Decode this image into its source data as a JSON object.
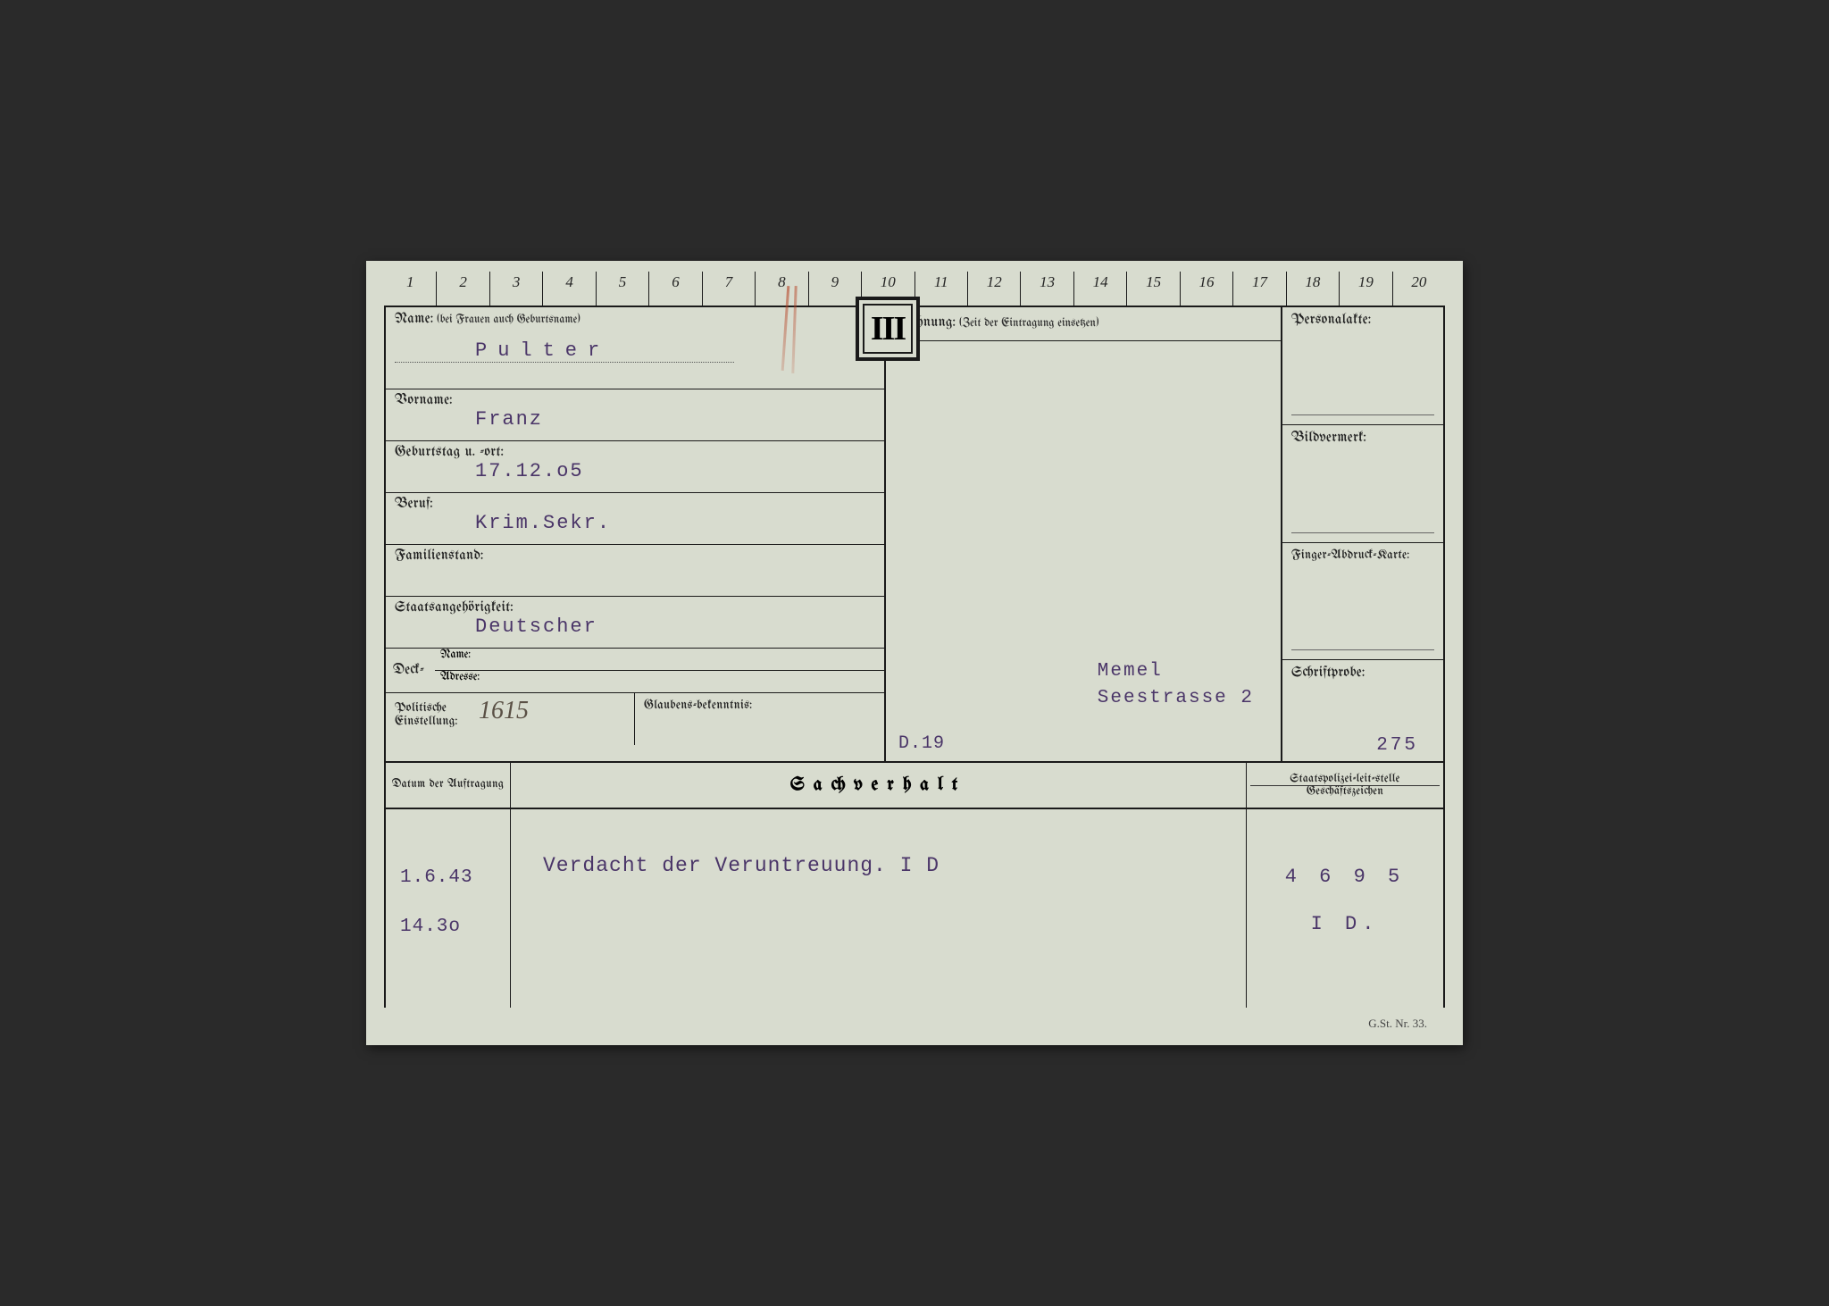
{
  "ruler": [
    "1",
    "2",
    "3",
    "4",
    "5",
    "6",
    "7",
    "8",
    "9",
    "10",
    "11",
    "12",
    "13",
    "14",
    "15",
    "16",
    "17",
    "18",
    "19",
    "20"
  ],
  "roman": "III",
  "labels": {
    "name": "Name:",
    "name_hint": "(bei Frauen auch Geburtsname)",
    "vorname": "Vorname:",
    "geburt": "Geburtstag u. -ort:",
    "beruf": "Beruf:",
    "familien": "Familienstand:",
    "staats": "Staatsangehörigkeit:",
    "deck": "Deck-",
    "deck_name": "Name:",
    "deck_adresse": "Adresse:",
    "politische": "Politische Einstellung:",
    "glaubens": "Glaubens-bekenntnis:",
    "wohnung": "Wohnung:",
    "wohnung_hint": "(Zeit der Eintragung einsetzen)",
    "personalakte": "Personalakte:",
    "bildvermerk": "Bildvermerk:",
    "finger": "Finger-Abdruck-Karte:",
    "schrift": "Schriftprobe:",
    "datum": "Datum der Auftragung",
    "sachverhalt": "Sachverhalt",
    "staatspolizei": "Staatspolizei-leit-stelle",
    "geschaefts": "Geschäftszeichen"
  },
  "values": {
    "name": "Pulter",
    "vorname": "Franz",
    "geburt": "17.12.o5",
    "beruf": "Krim.Sekr.",
    "familien": "",
    "staats": "Deutscher",
    "politische": "1615",
    "wohnung_line1": "Memel",
    "wohnung_line2": "Seestrasse 2",
    "d19": "D.19",
    "n275": "275",
    "datum1": "1.6.43",
    "datum2": "14.3o",
    "sach_text": "Verdacht der Veruntreuung. I D",
    "ref1": "4 6 9 5",
    "ref2": "I D."
  },
  "footer": "G.St. Nr. 33.",
  "colors": {
    "paper": "#d8dccf",
    "ink": "#1a1a1a",
    "typed": "#4a3568",
    "red": "#b43c1e"
  }
}
